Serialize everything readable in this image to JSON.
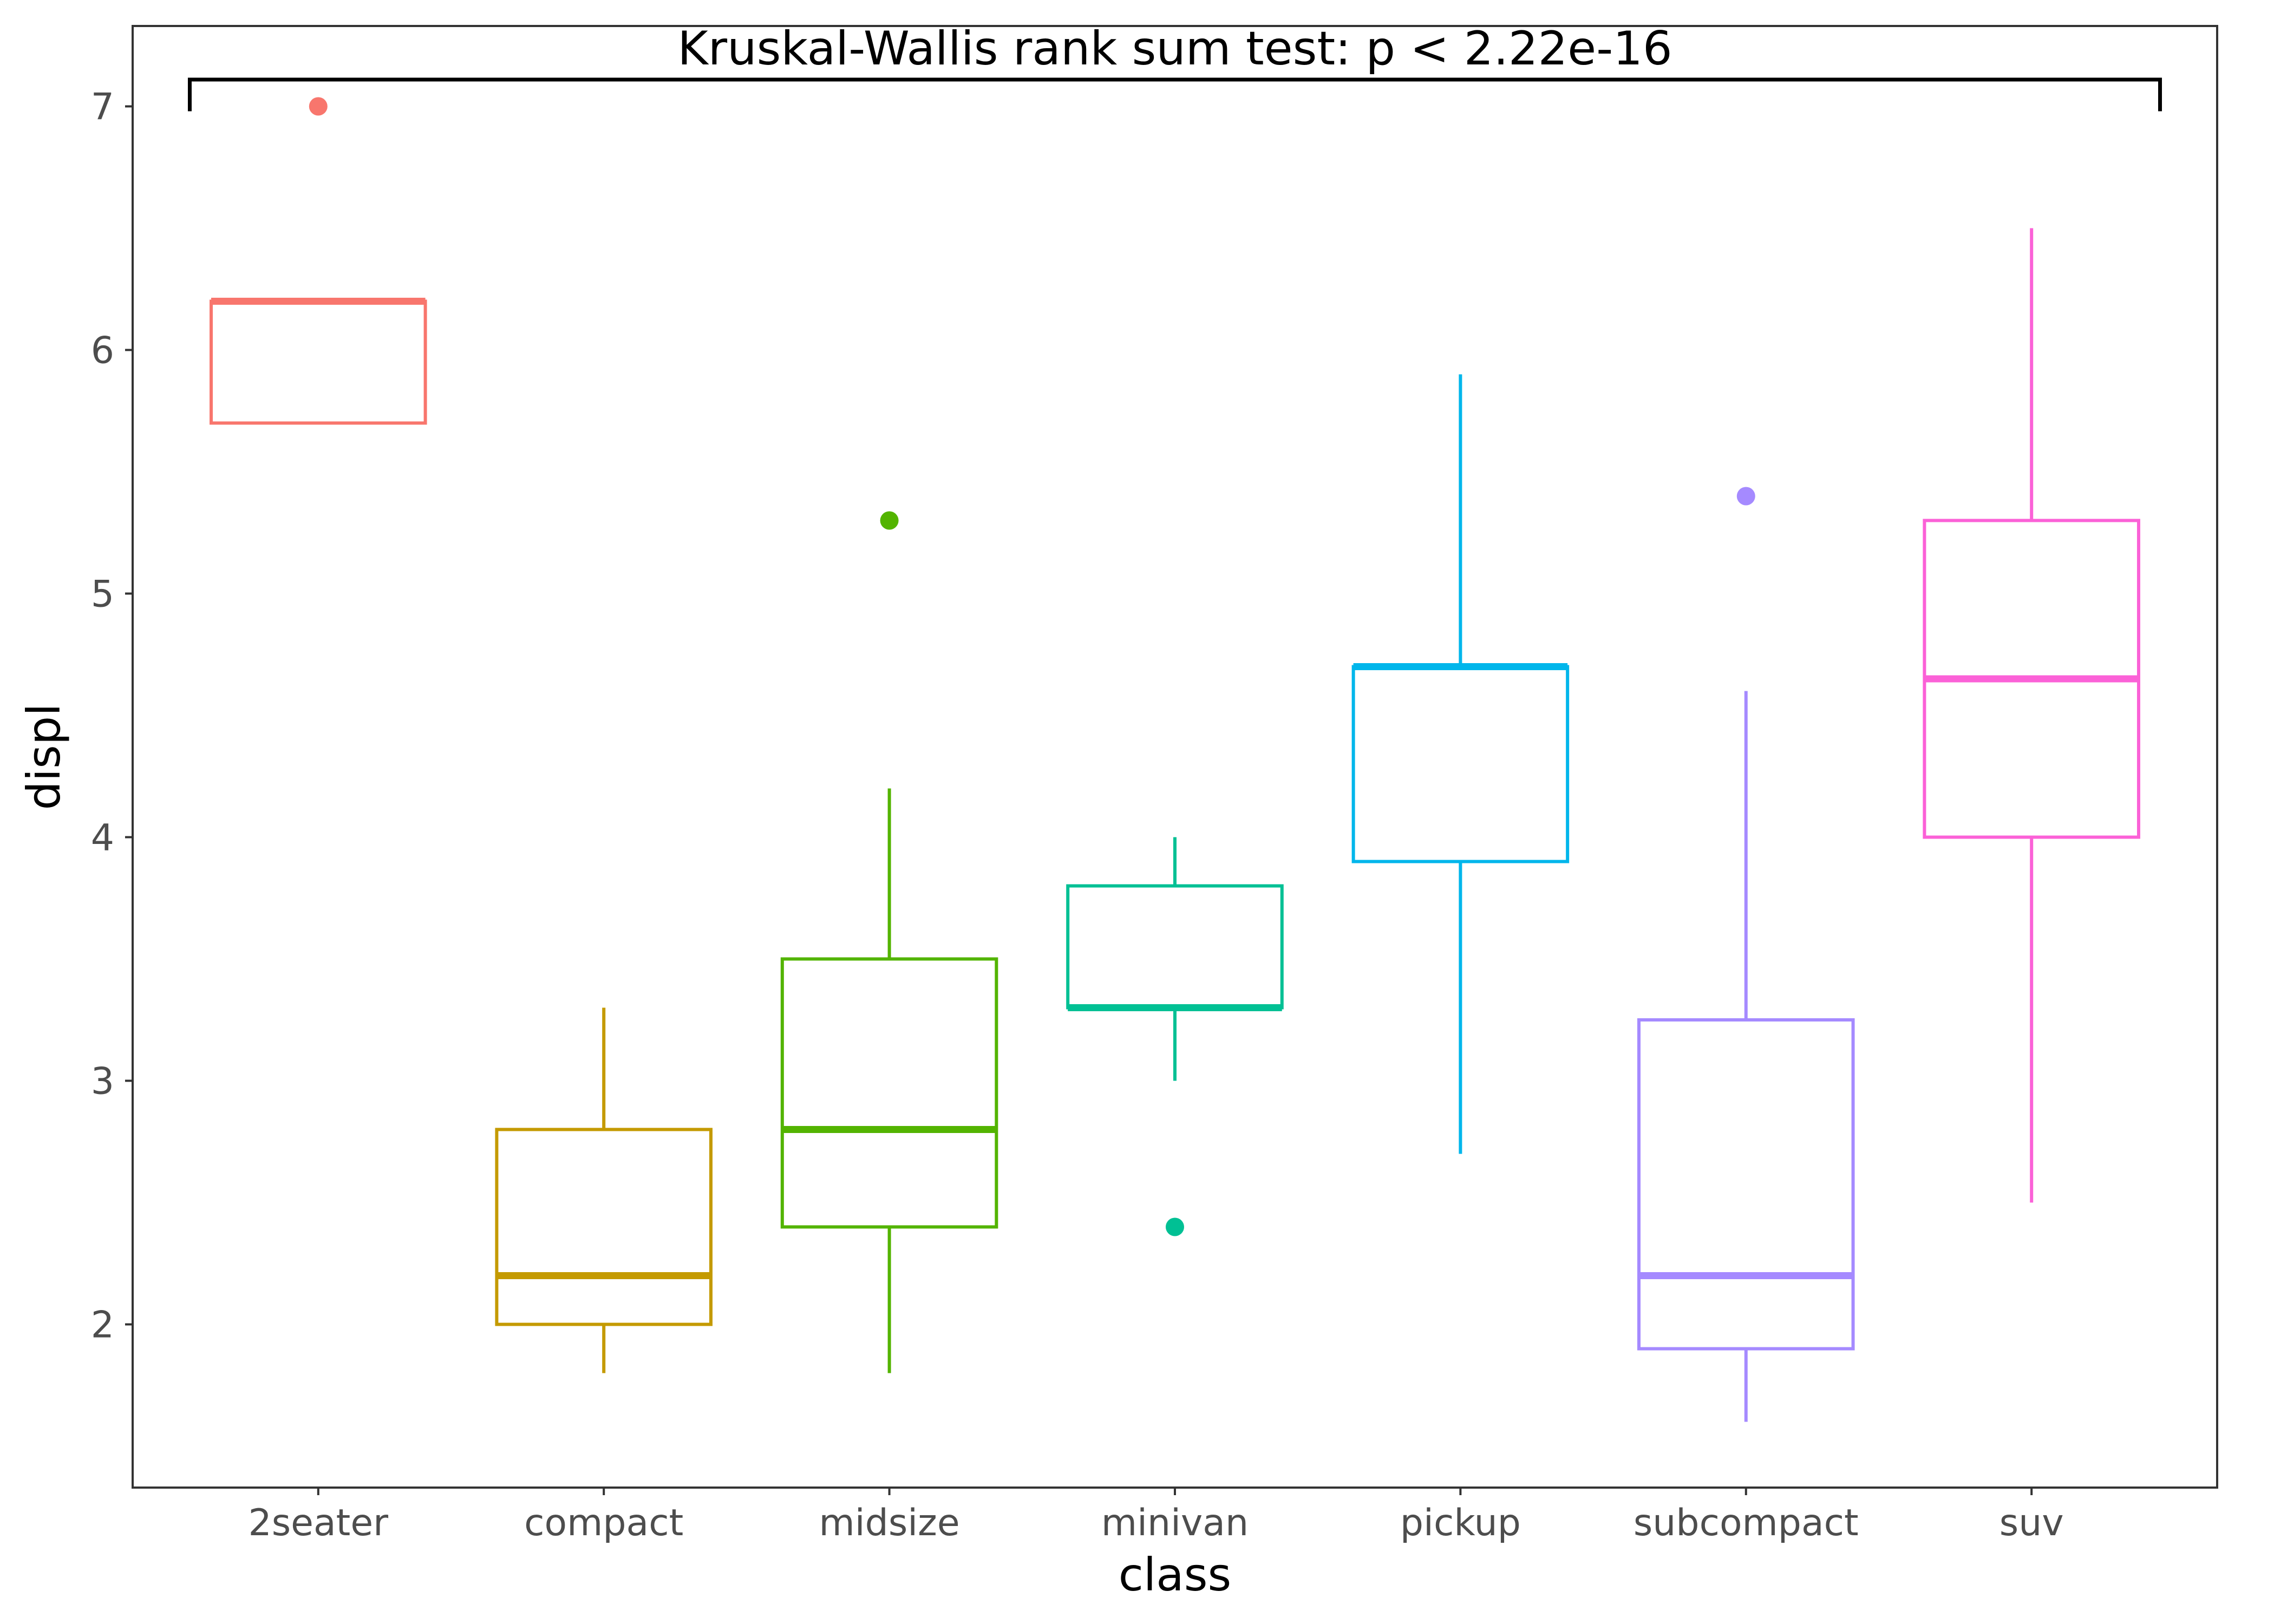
{
  "chart_data": {
    "type": "boxplot",
    "title": "",
    "xlabel": "class",
    "ylabel": "displ",
    "ylim": [
      1.33,
      7.33
    ],
    "yticks": [
      2,
      3,
      4,
      5,
      6,
      7
    ],
    "grid": false,
    "annotation": {
      "text": "Kruskal-Wallis rank sum test: p < 2.22e-16",
      "bracket_y": 7.11,
      "bracket_tip_y": 6.98
    },
    "categories": [
      "2seater",
      "compact",
      "midsize",
      "minivan",
      "pickup",
      "subcompact",
      "suv"
    ],
    "boxes": [
      {
        "category": "2seater",
        "color": "#F8766D",
        "whisker_low": 5.7,
        "q1": 5.7,
        "median": 6.2,
        "q3": 6.2,
        "whisker_high": 6.2,
        "outliers": [
          7.0
        ]
      },
      {
        "category": "compact",
        "color": "#C49A00",
        "whisker_low": 1.8,
        "q1": 2.0,
        "median": 2.2,
        "q3": 2.8,
        "whisker_high": 3.3,
        "outliers": []
      },
      {
        "category": "midsize",
        "color": "#53B400",
        "whisker_low": 1.8,
        "q1": 2.4,
        "median": 2.8,
        "q3": 3.5,
        "whisker_high": 4.2,
        "outliers": [
          5.3
        ]
      },
      {
        "category": "minivan",
        "color": "#00C094",
        "whisker_low": 3.0,
        "q1": 3.3,
        "median": 3.3,
        "q3": 3.8,
        "whisker_high": 4.0,
        "outliers": [
          2.4
        ]
      },
      {
        "category": "pickup",
        "color": "#00B6EB",
        "whisker_low": 2.7,
        "q1": 3.9,
        "median": 4.7,
        "q3": 4.7,
        "whisker_high": 5.9,
        "outliers": []
      },
      {
        "category": "subcompact",
        "color": "#A58AFF",
        "whisker_low": 1.6,
        "q1": 1.9,
        "median": 2.2,
        "q3": 3.25,
        "whisker_high": 4.6,
        "outliers": [
          5.4
        ]
      },
      {
        "category": "suv",
        "color": "#FB61D7",
        "whisker_low": 2.5,
        "q1": 4.0,
        "median": 4.65,
        "q3": 5.3,
        "whisker_high": 6.5,
        "outliers": []
      }
    ]
  }
}
